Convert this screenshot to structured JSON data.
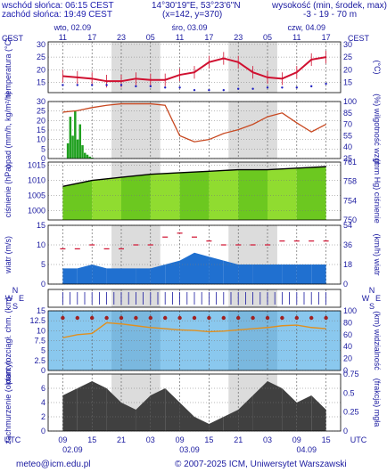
{
  "header": {
    "sunrise": "wschód słońca: 06:15 CEST",
    "sunset": "zachód słońca: 19:49 CEST",
    "coords": "14°30'19\"E, 53°23'6\"N",
    "grid": "(x=142, y=370)",
    "elev_label": "wysokość (min, środek, max)",
    "elev_values": "-3 - 19 - 70 m"
  },
  "footer": {
    "email": "meteo@icm.edu.pl",
    "copyright": "© 2007-2025 ICM, Uniwersytet Warszawski"
  },
  "timeaxis": {
    "tz": "CEST",
    "tz_bottom": "UTC",
    "days_top": [
      "wto, 02.09",
      "śro, 03.09",
      "czw, 04.09"
    ],
    "hours_top": [
      "11",
      "17",
      "23",
      "05",
      "11",
      "17",
      "23",
      "05",
      "11",
      "17"
    ],
    "hours_bottom": [
      "09",
      "15",
      "21",
      "03",
      "09",
      "15",
      "21",
      "03",
      "09",
      "15"
    ],
    "days_bottom": [
      "02.09",
      "03.09",
      "04.09"
    ]
  },
  "chart_data": [
    {
      "type": "line",
      "panel": "temperature",
      "ylabel_left": "temperatura (°C)",
      "ylabel_right": "(°C)",
      "yticks": [
        15,
        20,
        25,
        30
      ],
      "ylim": [
        11,
        31
      ],
      "x": [
        0,
        3,
        6,
        9,
        12,
        15,
        18,
        21,
        24,
        27,
        30,
        33,
        36,
        39,
        42,
        45,
        48,
        51,
        54
      ],
      "series": [
        {
          "name": "temperature",
          "color": "#d01030",
          "values": [
            17.5,
            17,
            16.5,
            15.5,
            15.5,
            16.5,
            16,
            16,
            18,
            19,
            23,
            24.5,
            23,
            19,
            17,
            16.5,
            19,
            24,
            25
          ]
        },
        {
          "name": "dew point",
          "color": "#2020c0",
          "values": [
            14,
            14,
            14,
            14,
            14,
            13.5,
            13.5,
            13,
            13,
            12,
            12,
            12,
            12.5,
            12.5,
            13,
            13,
            13,
            13.5,
            14.5
          ]
        }
      ]
    },
    {
      "type": "bar",
      "panel": "precipitation",
      "ylabel_left": "opad (mm/h, kg/m²/h)",
      "ylabel_right": "(%) wilgotność wzgl.",
      "yticks_left": [
        0,
        5,
        10,
        15,
        20,
        25,
        30
      ],
      "yticks_right": [
        25,
        40,
        55,
        70,
        85,
        100
      ],
      "ylim": [
        0,
        30
      ],
      "x": [
        1,
        1.5,
        2,
        2.5,
        3,
        3.5,
        4,
        4.5,
        5,
        5.5,
        6
      ],
      "values": [
        8,
        22,
        12,
        25,
        10,
        18,
        7,
        3,
        2,
        1,
        0.5
      ],
      "series": [
        {
          "name": "relative humidity",
          "color": "#c84820",
          "x": [
            0,
            3,
            6,
            9,
            12,
            15,
            18,
            21,
            24,
            27,
            30,
            33,
            36,
            39,
            42,
            45,
            48,
            51,
            54
          ],
          "values": [
            86,
            88,
            92,
            95,
            97,
            97,
            97,
            95,
            55,
            47,
            50,
            58,
            63,
            70,
            80,
            85,
            72,
            60,
            70
          ]
        }
      ]
    },
    {
      "type": "line",
      "panel": "pressure",
      "ylabel_left": "ciśnienie (hPa)",
      "ylabel_right": "(mm Hg) ciśnienie",
      "yticks_left": [
        1000,
        1005,
        1010,
        1015
      ],
      "yticks_right": [
        750,
        754,
        758,
        761
      ],
      "ylim": [
        997,
        1016
      ],
      "x": [
        0,
        6,
        12,
        18,
        24,
        30,
        36,
        42,
        48,
        54
      ],
      "values": [
        1008,
        1010,
        1011,
        1012,
        1012.5,
        1013,
        1013.5,
        1013.5,
        1014,
        1014.5
      ]
    },
    {
      "type": "area",
      "panel": "wind",
      "ylabel_left": "wiatr (m/s)",
      "ylabel_right": "(km/h) wiatr",
      "yticks_left": [
        0,
        5,
        10,
        15
      ],
      "yticks_right": [
        0,
        18,
        36,
        54
      ],
      "ylim": [
        0,
        15
      ],
      "x": [
        0,
        3,
        6,
        9,
        12,
        15,
        18,
        21,
        24,
        27,
        30,
        33,
        36,
        39,
        42,
        45,
        48,
        51,
        54
      ],
      "values": [
        4,
        4,
        5,
        4,
        4,
        4,
        4,
        5,
        6,
        8,
        7,
        6,
        5,
        5,
        5,
        5,
        5,
        5,
        5
      ],
      "series": [
        {
          "name": "gusts",
          "color": "#d01030",
          "values": [
            9,
            9,
            10,
            9,
            9,
            10,
            10,
            12,
            13,
            12,
            11,
            10,
            10,
            10,
            10,
            11,
            11,
            11,
            11
          ]
        }
      ]
    },
    {
      "type": "scatter",
      "panel": "wind direction",
      "labels": [
        "W",
        "E",
        "N",
        "S"
      ]
    },
    {
      "type": "scatter",
      "panel": "clouds",
      "ylabel_left": "pion. rozciągł. chm. (km)",
      "ylabel_right": "(km) widzialność",
      "yticks_left": [
        0.0,
        2.5,
        5.0,
        7.5,
        10.0,
        12.5,
        15.0
      ],
      "yticks_right": [
        0,
        20,
        40,
        60,
        80,
        100
      ],
      "ylim": [
        0,
        15
      ],
      "series": [
        {
          "name": "visibility",
          "color": "#e09020",
          "x": [
            0,
            3,
            6,
            9,
            12,
            15,
            18,
            21,
            24,
            27,
            30,
            33,
            36,
            39,
            42,
            45,
            48,
            51,
            54
          ],
          "values": [
            55,
            60,
            62,
            80,
            78,
            75,
            72,
            70,
            68,
            67,
            65,
            66,
            68,
            70,
            72,
            75,
            76,
            72,
            70
          ]
        }
      ]
    },
    {
      "type": "area",
      "panel": "cloud cover",
      "ylabel_left": "zachmurzenie (oktanty)",
      "ylabel_right": "(frakcja) mgła",
      "yticks_left": [
        0,
        2,
        4,
        6
      ],
      "yticks_right": [
        0,
        0.25,
        0.5,
        0.75
      ],
      "ylim": [
        0,
        8
      ],
      "x": [
        0,
        3,
        6,
        9,
        12,
        15,
        18,
        21,
        24,
        27,
        30,
        33,
        36,
        39,
        42,
        45,
        48,
        51,
        54
      ],
      "values": [
        5,
        6,
        7,
        6,
        4,
        3,
        5,
        6,
        4,
        2,
        1,
        2,
        3,
        5,
        7,
        6,
        4,
        5,
        3
      ]
    }
  ]
}
